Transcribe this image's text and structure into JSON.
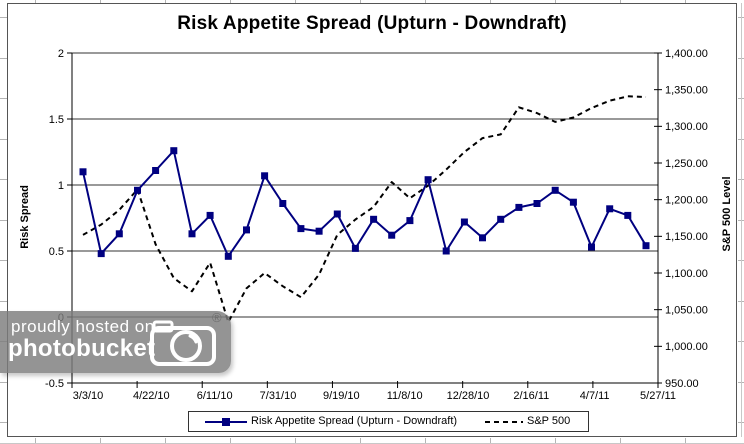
{
  "title": "Risk Appetite Spread (Upturn - Downdraft)",
  "watermark": {
    "line1": "proudly hosted on",
    "line2": "photobucket",
    "registered": "®"
  },
  "colors": {
    "spread_line": "#000080",
    "sp500_line": "#000000",
    "gridline": "#333333",
    "axis": "#000000"
  },
  "chart_data": {
    "type": "line",
    "title": "Risk Appetite Spread (Upturn - Downdraft)",
    "grid": "horizontal-on",
    "legend_position": "bottom",
    "x_tick_labels": [
      "3/3/10",
      "4/22/10",
      "6/11/10",
      "7/31/10",
      "9/19/10",
      "11/8/10",
      "12/28/10",
      "2/16/11",
      "4/7/11",
      "5/27/11"
    ],
    "y_left": {
      "title": "Risk Spread",
      "min": -0.5,
      "max": 2,
      "step": 0.5,
      "tick_labels": [
        "2",
        "1.5",
        "1",
        "0.5",
        "0",
        "-0.5"
      ]
    },
    "y_right": {
      "title": "S&P 500 Level",
      "min": 950,
      "max": 1400,
      "step": 50,
      "tick_labels": [
        "1,400.00",
        "1,350.00",
        "1,300.00",
        "1,250.00",
        "1,200.00",
        "1,150.00",
        "1,100.00",
        "1,050.00",
        "1,000.00",
        "950.00"
      ]
    },
    "legend": [
      {
        "label": "Risk Appetite Spread (Upturn - Downdraft)",
        "style": "solid-square-marker",
        "color": "#000080"
      },
      {
        "label": "S&P 500",
        "style": "dashed",
        "color": "#000000"
      }
    ],
    "series": [
      {
        "name": "Risk Appetite Spread (Upturn - Downdraft)",
        "axis": "left",
        "marker": "square",
        "values": [
          1.1,
          0.48,
          0.63,
          0.96,
          1.11,
          1.26,
          0.63,
          0.77,
          0.46,
          0.66,
          1.07,
          0.86,
          0.67,
          0.65,
          0.78,
          0.52,
          0.74,
          0.62,
          0.73,
          1.04,
          0.5,
          0.72,
          0.6,
          0.74,
          0.83,
          0.86,
          0.96,
          0.87,
          0.53,
          0.82,
          0.77,
          0.54
        ]
      },
      {
        "name": "S&P 500",
        "axis": "right",
        "marker": "none",
        "values": [
          1152,
          1166,
          1186,
          1214,
          1139,
          1093,
          1075,
          1114,
          1033,
          1079,
          1100,
          1082,
          1067,
          1098,
          1152,
          1173,
          1190,
          1224,
          1202,
          1219,
          1241,
          1265,
          1284,
          1289,
          1326,
          1318,
          1306,
          1312,
          1325,
          1335,
          1341,
          1340
        ]
      }
    ]
  }
}
